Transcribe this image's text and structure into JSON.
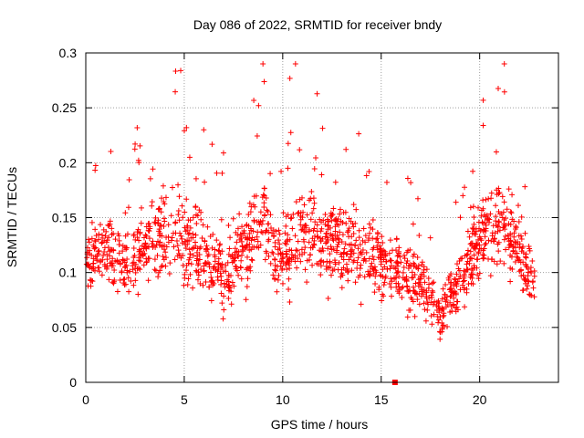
{
  "chart_data": {
    "type": "scatter",
    "title": "Day 086 of 2022, SRMTID for receiver bndy",
    "xlabel": "GPS time / hours",
    "ylabel": "SRMTID / TECUs",
    "xlim": [
      0,
      24
    ],
    "ylim": [
      0,
      0.3
    ],
    "xticks": [
      0,
      5,
      10,
      15,
      20
    ],
    "xtick_labels": [
      "0",
      "5",
      "10",
      "15",
      "20"
    ],
    "yticks": [
      0,
      0.05,
      0.1,
      0.15,
      0.2,
      0.25,
      0.3
    ],
    "ytick_labels": [
      "0",
      "0.05",
      "0.1",
      "0.15",
      "0.2",
      "0.25",
      "0.3"
    ],
    "grid": true,
    "marker": "plus",
    "point_color": "#ff0000",
    "outlier_marker": {
      "x": 15.7,
      "y": 0.0
    },
    "envelope": [
      {
        "x": 0.0,
        "mean": 0.11,
        "spread": 0.035
      },
      {
        "x": 1.0,
        "mean": 0.12,
        "spread": 0.04
      },
      {
        "x": 2.0,
        "mean": 0.11,
        "spread": 0.035
      },
      {
        "x": 3.0,
        "mean": 0.12,
        "spread": 0.04
      },
      {
        "x": 4.0,
        "mean": 0.14,
        "spread": 0.05
      },
      {
        "x": 5.0,
        "mean": 0.13,
        "spread": 0.055
      },
      {
        "x": 6.0,
        "mean": 0.12,
        "spread": 0.04
      },
      {
        "x": 7.0,
        "mean": 0.09,
        "spread": 0.04
      },
      {
        "x": 8.0,
        "mean": 0.12,
        "spread": 0.04
      },
      {
        "x": 9.0,
        "mean": 0.15,
        "spread": 0.055
      },
      {
        "x": 10.0,
        "mean": 0.11,
        "spread": 0.045
      },
      {
        "x": 11.0,
        "mean": 0.14,
        "spread": 0.05
      },
      {
        "x": 12.0,
        "mean": 0.13,
        "spread": 0.045
      },
      {
        "x": 13.0,
        "mean": 0.13,
        "spread": 0.045
      },
      {
        "x": 14.0,
        "mean": 0.12,
        "spread": 0.04
      },
      {
        "x": 15.0,
        "mean": 0.11,
        "spread": 0.04
      },
      {
        "x": 16.0,
        "mean": 0.1,
        "spread": 0.035
      },
      {
        "x": 17.0,
        "mean": 0.09,
        "spread": 0.035
      },
      {
        "x": 18.0,
        "mean": 0.065,
        "spread": 0.025
      },
      {
        "x": 19.0,
        "mean": 0.09,
        "spread": 0.035
      },
      {
        "x": 20.0,
        "mean": 0.13,
        "spread": 0.045
      },
      {
        "x": 21.0,
        "mean": 0.15,
        "spread": 0.05
      },
      {
        "x": 22.0,
        "mean": 0.12,
        "spread": 0.045
      },
      {
        "x": 22.8,
        "mean": 0.09,
        "spread": 0.03
      }
    ],
    "points_per_hour": 70
  }
}
